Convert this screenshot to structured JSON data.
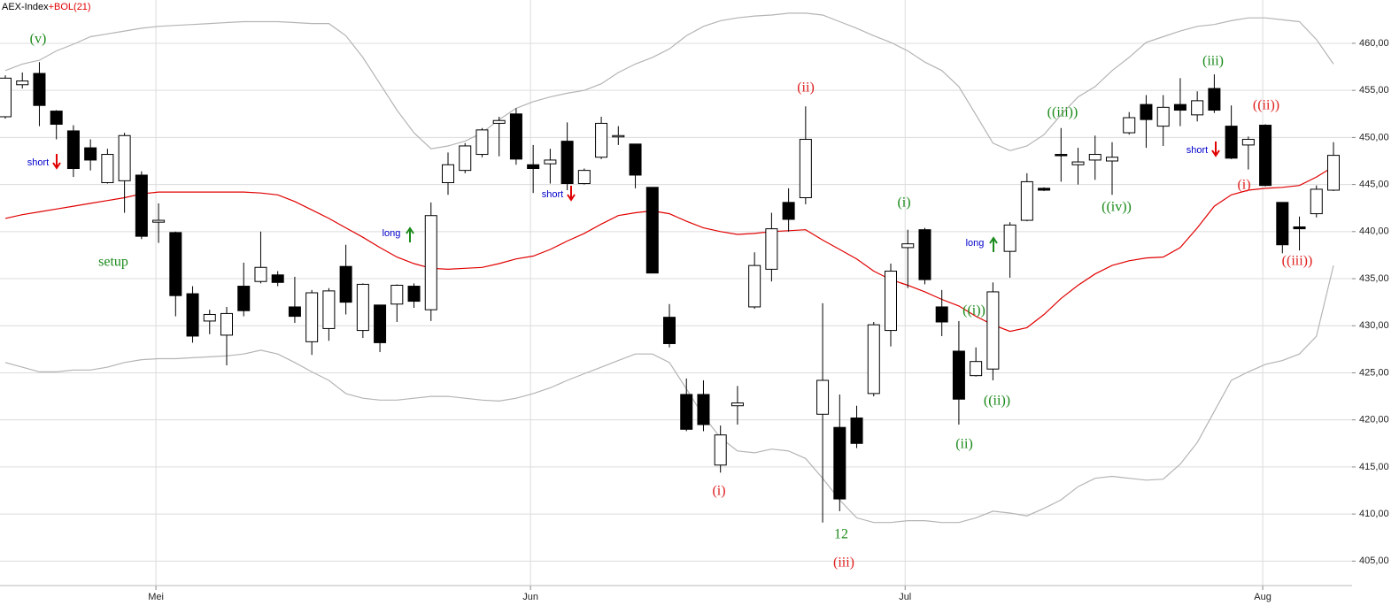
{
  "chart_data": {
    "type": "candlestick",
    "title": "AEX-Index",
    "indicator": "+BOL(21)",
    "title_color": "#000000",
    "indicator_color": "#e00000",
    "categories": [
      null,
      null,
      null,
      null,
      null,
      null,
      null,
      null,
      null,
      "Mei",
      null,
      null,
      null,
      null,
      null,
      null,
      null,
      null,
      null,
      null,
      null,
      null,
      null,
      null,
      null,
      null,
      null,
      null,
      null,
      null,
      null,
      "Jun",
      null,
      null,
      null,
      null,
      null,
      null,
      null,
      null,
      null,
      null,
      null,
      null,
      null,
      null,
      null,
      null,
      null,
      null,
      null,
      null,
      null,
      "Jul",
      null,
      null,
      null,
      null,
      null,
      null,
      null,
      null,
      null,
      null,
      null,
      null,
      null,
      null,
      null,
      null,
      null,
      null,
      null,
      null,
      "Aug",
      null,
      null,
      null,
      null
    ],
    "open": [
      452.2,
      455.6,
      456.8,
      452.8,
      450.7,
      448.9,
      445.2,
      445.4,
      446.0,
      441.0,
      439.9,
      433.4,
      430.5,
      429.0,
      434.2,
      434.7,
      435.4,
      432.0,
      428.3,
      429.7,
      436.3,
      429.5,
      432.2,
      432.3,
      434.2,
      431.7,
      445.2,
      446.5,
      448.2,
      451.5,
      452.5,
      447.1,
      447.2,
      449.6,
      445.1,
      447.9,
      450.1,
      449.3,
      444.7,
      430.9,
      422.7,
      422.7,
      415.2,
      421.5,
      432.0,
      436.0,
      443.1,
      443.6,
      420.6,
      419.2,
      420.2,
      422.8,
      429.5,
      438.3,
      440.2,
      432.0,
      427.3,
      424.7,
      425.4,
      437.9,
      441.2,
      444.6,
      448.2,
      447.1,
      447.6,
      447.5,
      450.5,
      453.5,
      451.2,
      453.5,
      452.4,
      455.2,
      451.2,
      449.2,
      451.3,
      443.1,
      440.5,
      441.9,
      444.4
    ],
    "high": [
      456.6,
      456.9,
      458.0,
      452.9,
      451.3,
      449.8,
      448.8,
      450.5,
      446.4,
      443.0,
      440.0,
      434.2,
      431.7,
      432.0,
      436.7,
      440.0,
      435.8,
      435.2,
      433.8,
      434.0,
      438.6,
      434.5,
      432.2,
      434.4,
      434.5,
      443.1,
      448.4,
      449.4,
      451.0,
      452.2,
      453.1,
      449.2,
      448.8,
      451.6,
      446.7,
      452.2,
      451.2,
      449.3,
      444.7,
      432.3,
      424.4,
      424.2,
      419.4,
      423.6,
      437.8,
      442.0,
      444.6,
      453.3,
      432.4,
      422.7,
      421.5,
      430.4,
      436.6,
      440.2,
      440.4,
      433.8,
      430.5,
      427.7,
      434.6,
      441.0,
      446.2,
      444.7,
      451.0,
      448.9,
      450.2,
      449.5,
      452.7,
      454.5,
      454.5,
      456.3,
      454.9,
      456.7,
      453.4,
      450.1,
      451.4,
      443.1,
      441.6,
      444.9,
      449.5
    ],
    "low": [
      452.0,
      455.2,
      451.2,
      449.8,
      445.8,
      446.5,
      445.1,
      442.0,
      439.2,
      438.8,
      431.0,
      428.2,
      429.1,
      425.8,
      431.0,
      434.5,
      434.2,
      430.3,
      426.9,
      428.4,
      431.2,
      428.7,
      427.2,
      430.4,
      431.9,
      430.5,
      443.9,
      446.2,
      447.9,
      448.0,
      447.1,
      444.1,
      445.1,
      444.4,
      445.0,
      447.7,
      449.2,
      444.6,
      435.6,
      427.7,
      418.8,
      418.8,
      414.4,
      419.5,
      431.8,
      434.7,
      440.0,
      442.9,
      409.1,
      410.3,
      417.0,
      422.5,
      427.8,
      434.0,
      434.4,
      428.9,
      419.5,
      424.6,
      424.2,
      435.1,
      441.1,
      444.3,
      445.3,
      445.0,
      445.5,
      443.9,
      450.3,
      448.9,
      449.1,
      451.2,
      451.7,
      452.6,
      447.7,
      446.6,
      444.8,
      437.7,
      438.0,
      441.5,
      444.3
    ],
    "close": [
      456.3,
      456.0,
      453.4,
      451.4,
      446.7,
      447.6,
      448.2,
      450.2,
      439.5,
      441.2,
      433.2,
      428.9,
      431.2,
      431.3,
      431.6,
      436.2,
      434.6,
      431.0,
      433.5,
      433.7,
      432.5,
      434.4,
      428.2,
      434.3,
      432.6,
      441.7,
      447.1,
      449.1,
      450.8,
      451.8,
      447.7,
      446.7,
      447.6,
      445.1,
      446.5,
      451.5,
      450.2,
      446.0,
      435.6,
      428.1,
      419.0,
      419.5,
      418.4,
      421.8,
      436.4,
      440.3,
      441.3,
      449.8,
      424.2,
      411.6,
      417.5,
      430.1,
      435.8,
      438.7,
      434.9,
      430.4,
      422.2,
      426.2,
      433.6,
      440.7,
      445.3,
      444.4,
      448.1,
      447.4,
      448.2,
      447.9,
      452.1,
      451.9,
      453.2,
      452.9,
      453.9,
      452.9,
      447.8,
      449.8,
      444.9,
      438.6,
      440.3,
      444.5,
      448.1
    ],
    "up_color": "#ffffff",
    "down_color": "#000000",
    "overlays": [
      {
        "color": "#b4b4b4",
        "values": [
          457.1,
          457.8,
          458.2,
          459.2,
          459.9,
          460.7,
          461.0,
          461.3,
          461.6,
          461.8,
          461.9,
          462.0,
          462.1,
          462.2,
          462.3,
          462.3,
          462.3,
          462.2,
          462.1,
          462.1,
          460.8,
          458.5,
          455.7,
          452.9,
          450.5,
          448.8,
          449.1,
          449.6,
          450.5,
          451.9,
          453.1,
          453.8,
          454.3,
          454.7,
          455.0,
          455.7,
          456.9,
          457.8,
          458.5,
          459.4,
          460.8,
          461.8,
          462.4,
          462.7,
          462.9,
          463.0,
          463.2,
          463.2,
          463.0,
          462.3,
          461.6,
          460.8,
          460.1,
          459.2,
          458.0,
          457.1,
          455.4,
          452.4,
          449.4,
          448.6,
          449.1,
          450.3,
          452.4,
          454.3,
          455.4,
          457.1,
          458.5,
          460.1,
          460.7,
          461.3,
          461.8,
          462.0,
          462.4,
          462.7,
          462.7,
          462.5,
          462.3,
          460.4,
          457.8
        ]
      },
      {
        "color": "#e00000",
        "values": [
          441.4,
          441.8,
          442.1,
          442.4,
          442.7,
          443.0,
          443.3,
          443.6,
          444.0,
          444.2,
          444.2,
          444.2,
          444.2,
          444.2,
          444.2,
          444.1,
          443.9,
          443.2,
          442.3,
          441.4,
          440.4,
          439.4,
          438.3,
          437.3,
          436.6,
          436.1,
          436.0,
          436.1,
          436.2,
          436.6,
          437.1,
          437.4,
          438.1,
          439.0,
          439.8,
          440.8,
          441.7,
          442.0,
          442.2,
          441.9,
          441.1,
          440.4,
          440.0,
          439.7,
          439.8,
          440.0,
          440.1,
          440.2,
          439.1,
          438.1,
          437.1,
          435.8,
          434.9,
          434.3,
          433.6,
          432.8,
          432.1,
          431.0,
          430.1,
          429.4,
          429.8,
          431.2,
          432.9,
          434.3,
          435.5,
          436.4,
          436.9,
          437.2,
          437.3,
          438.3,
          440.4,
          442.7,
          443.9,
          444.4,
          444.6,
          444.7,
          444.9,
          445.8,
          446.9
        ]
      },
      {
        "color": "#b4b4b4",
        "values": [
          426.1,
          425.6,
          425.1,
          425.1,
          425.3,
          425.3,
          425.6,
          426.1,
          426.4,
          426.5,
          426.5,
          426.6,
          426.7,
          426.8,
          427.0,
          427.4,
          427.0,
          426.1,
          425.1,
          424.2,
          422.8,
          422.3,
          422.1,
          422.1,
          422.3,
          422.5,
          422.5,
          422.3,
          422.1,
          422.0,
          422.3,
          422.8,
          423.4,
          424.2,
          424.9,
          425.6,
          426.3,
          427.0,
          427.0,
          426.1,
          423.3,
          420.4,
          418.1,
          416.7,
          416.5,
          416.9,
          416.7,
          415.9,
          413.8,
          411.5,
          409.6,
          409.1,
          409.1,
          409.3,
          409.3,
          409.1,
          409.1,
          409.6,
          410.3,
          410.1,
          409.8,
          410.6,
          411.5,
          412.9,
          413.8,
          414.0,
          413.8,
          413.6,
          413.7,
          415.3,
          417.6,
          420.9,
          424.2,
          425.1,
          425.9,
          426.3,
          427.0,
          428.9,
          436.4
        ]
      }
    ],
    "ylim": [
      402.4,
      464.6
    ],
    "yticks": [
      {
        "value": 405,
        "label": "405,00"
      },
      {
        "value": 410,
        "label": "410,00"
      },
      {
        "value": 415,
        "label": "415,00"
      },
      {
        "value": 420,
        "label": "420,00"
      },
      {
        "value": 425,
        "label": "425,00"
      },
      {
        "value": 430,
        "label": "430,00"
      },
      {
        "value": 435,
        "label": "435,00"
      },
      {
        "value": 440,
        "label": "440,00"
      },
      {
        "value": 445,
        "label": "445,00"
      },
      {
        "value": 450,
        "label": "450,00"
      },
      {
        "value": 455,
        "label": "455,00"
      },
      {
        "value": 460,
        "label": "460,00"
      }
    ],
    "grid": true,
    "grid_color": "#dcdcdc",
    "annotations": [
      {
        "text": "(v)",
        "color": "#1a8a1a"
      },
      {
        "text": "short",
        "color": "#0000cc"
      },
      {
        "text": "setup",
        "color": "#1a8a1a"
      },
      {
        "text": "long",
        "color": "#0000cc"
      },
      {
        "text": "short",
        "color": "#0000cc"
      },
      {
        "text": "(i)",
        "color": "#e02020"
      },
      {
        "text": "(ii)",
        "color": "#e02020"
      },
      {
        "text": "12",
        "color": "#1a8a1a"
      },
      {
        "text": "(iii)",
        "color": "#e02020"
      },
      {
        "text": "(i)",
        "color": "#1a8a1a"
      },
      {
        "text": "long",
        "color": "#0000cc"
      },
      {
        "text": "((i))",
        "color": "#1a8a1a"
      },
      {
        "text": "((ii))",
        "color": "#1a8a1a"
      },
      {
        "text": "(ii)",
        "color": "#1a8a1a"
      },
      {
        "text": "((iii))",
        "color": "#1a8a1a"
      },
      {
        "text": "((iv))",
        "color": "#1a8a1a"
      },
      {
        "text": "(iii)",
        "color": "#1a8a1a"
      },
      {
        "text": "short",
        "color": "#0000cc"
      },
      {
        "text": "((ii))",
        "color": "#e02020"
      },
      {
        "text": "(i)",
        "color": "#e02020"
      },
      {
        "text": "((iii))",
        "color": "#e02020"
      }
    ]
  }
}
